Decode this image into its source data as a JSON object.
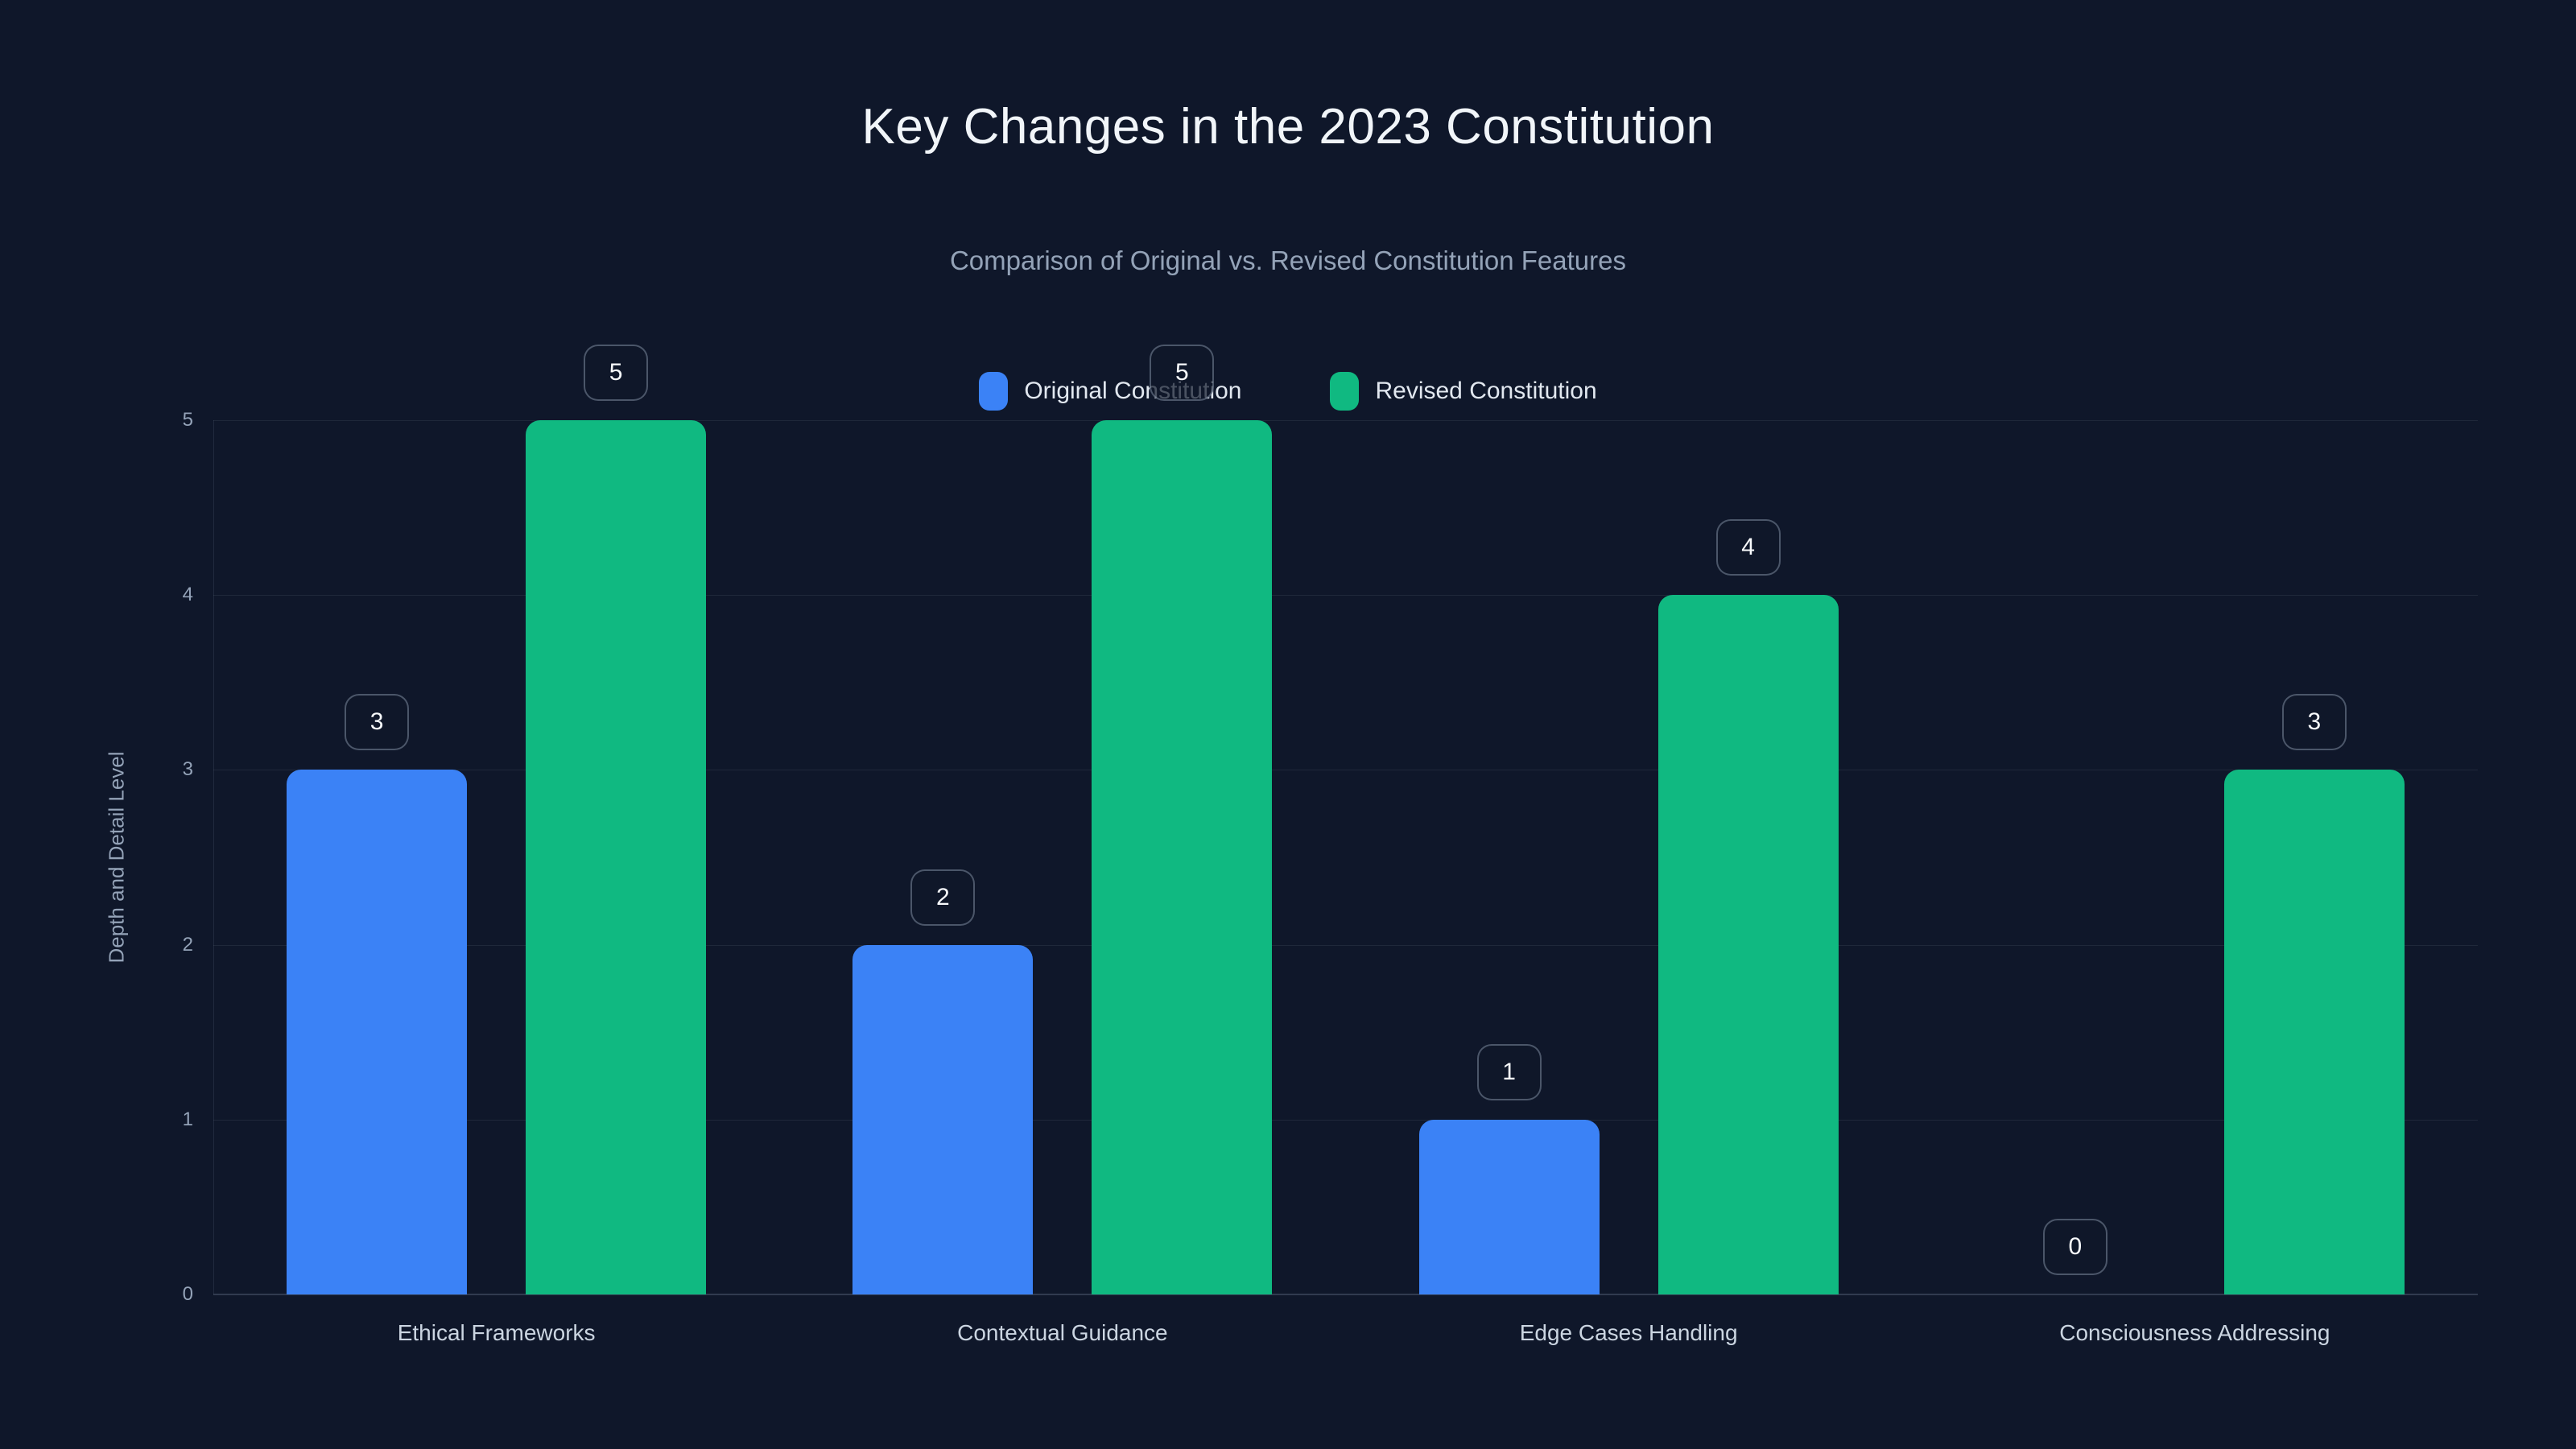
{
  "page": {
    "background_color": "#0f172a"
  },
  "header": {
    "title": "Key Changes in the 2023 Constitution",
    "subtitle": "Comparison of Original vs. Revised Constitution Features"
  },
  "colors": {
    "original_series": "#3b82f6",
    "revised_series": "#10b981",
    "title_text": "#f1f5f9",
    "subtitle_text": "#94a3b8",
    "axis_text": "#94a3b8",
    "category_text": "#cbd5e1",
    "badge_text": "#f8fafc"
  },
  "chart_data": {
    "type": "bar",
    "title": "Key Changes in the 2023 Constitution",
    "subtitle": "Comparison of Original vs. Revised Constitution Features",
    "categories": [
      "Ethical Frameworks",
      "Contextual Guidance",
      "Edge Cases Handling",
      "Consciousness Addressing"
    ],
    "series": [
      {
        "name": "Original Constitution",
        "color": "#3b82f6",
        "values": [
          3,
          2,
          1,
          0
        ]
      },
      {
        "name": "Revised Constitution",
        "color": "#10b981",
        "values": [
          5,
          5,
          4,
          3
        ]
      }
    ],
    "xlabel": "",
    "ylabel": "Depth and Detail Level",
    "ylim": [
      0,
      5
    ],
    "yticks": [
      "0",
      "1",
      "2",
      "3",
      "4",
      "5"
    ],
    "grid": true,
    "legend_position": "top-center",
    "data_labels": true
  }
}
